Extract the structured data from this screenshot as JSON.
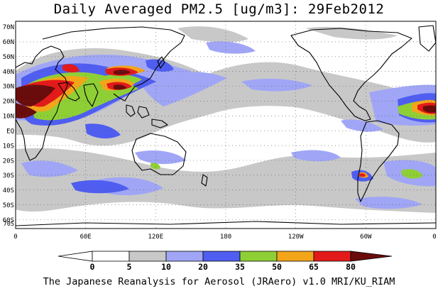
{
  "title": "Daily Averaged PM2.5 [ug/m3]: 29Feb2012",
  "credit": "The Japanese Reanalysis for Aerosol (JRAero) v1.0 MRI/KU_RIAM",
  "latitude_labels": [
    "70N",
    "60N",
    "50N",
    "40N",
    "30N",
    "20N",
    "10N",
    "EQ",
    "10S",
    "20S",
    "30S",
    "40S",
    "50S",
    "60S",
    "70S"
  ],
  "longitude_labels": [
    "0",
    "60E",
    "120E",
    "180",
    "120W",
    "60W",
    "0"
  ],
  "colorbar": {
    "ticks": [
      "0",
      "5",
      "10",
      "20",
      "35",
      "50",
      "65",
      "80"
    ],
    "colors": [
      "#ffffff",
      "#c8c8c8",
      "#a0a6f5",
      "#4f5ef0",
      "#8fcf36",
      "#f3a51a",
      "#e31a1a",
      "#6b0c0c"
    ]
  },
  "legend_bins": [
    {
      "range": "<0",
      "color": "#ffffff"
    },
    {
      "range": "0-5",
      "color": "#ffffff"
    },
    {
      "range": "5-10",
      "color": "#c8c8c8"
    },
    {
      "range": "10-20",
      "color": "#a0a6f5"
    },
    {
      "range": "20-35",
      "color": "#4f5ef0"
    },
    {
      "range": "35-50",
      "color": "#8fcf36"
    },
    {
      "range": "50-65",
      "color": "#f3a51a"
    },
    {
      "range": "65-80",
      "color": "#e31a1a"
    },
    {
      "range": ">80",
      "color": "#6b0c0c"
    }
  ]
}
